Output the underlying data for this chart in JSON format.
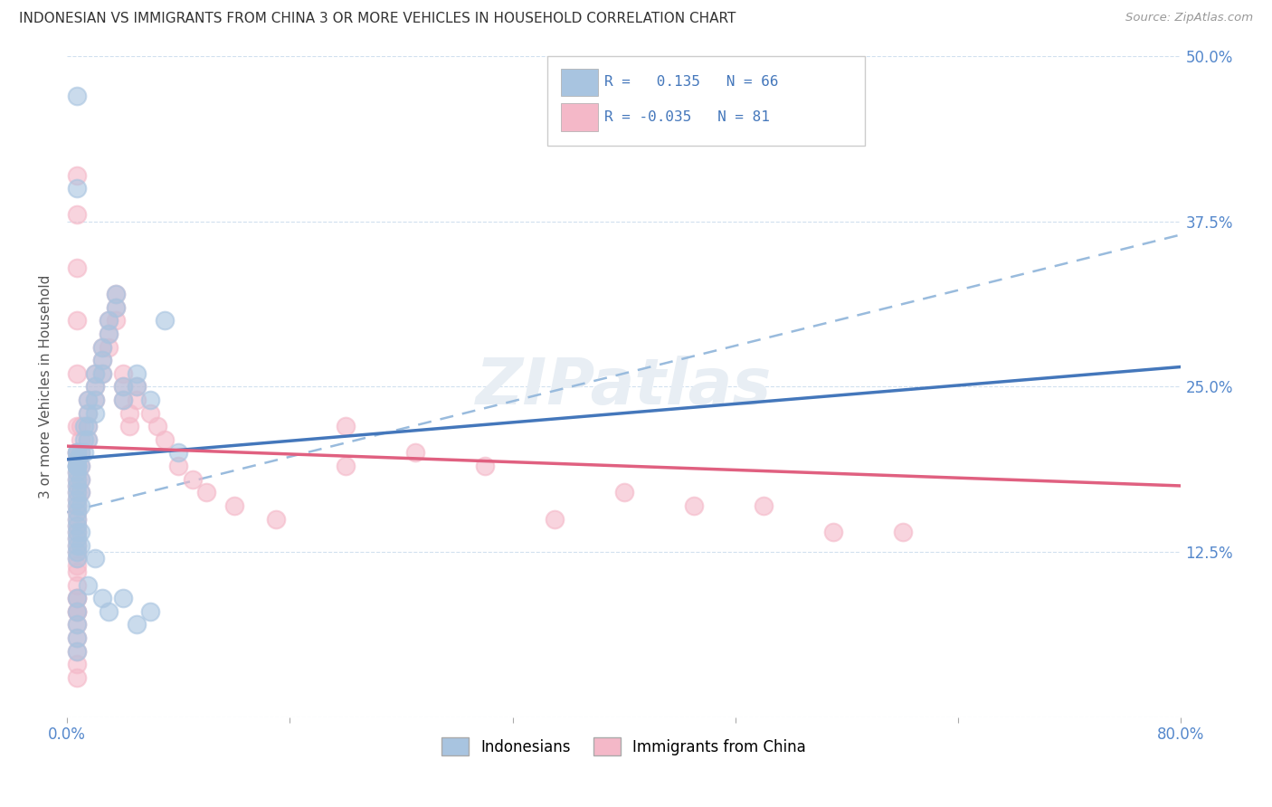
{
  "title": "INDONESIAN VS IMMIGRANTS FROM CHINA 3 OR MORE VEHICLES IN HOUSEHOLD CORRELATION CHART",
  "source": "Source: ZipAtlas.com",
  "ylabel": "3 or more Vehicles in Household",
  "xlim": [
    0.0,
    0.8
  ],
  "ylim": [
    0.0,
    0.5
  ],
  "color_blue": "#a8c4e0",
  "color_pink": "#f4b8c8",
  "trendline_blue": "#4477bb",
  "trendline_pink": "#e06080",
  "trendline_dashed_color": "#99bbdd",
  "blue_trend_x": [
    0.0,
    0.8
  ],
  "blue_trend_y": [
    0.195,
    0.265
  ],
  "pink_trend_x": [
    0.0,
    0.8
  ],
  "pink_trend_y": [
    0.205,
    0.175
  ],
  "dash_trend_x": [
    0.0,
    0.8
  ],
  "dash_trend_y": [
    0.155,
    0.365
  ],
  "indonesian_x": [
    0.007,
    0.007,
    0.007,
    0.007,
    0.007,
    0.007,
    0.007,
    0.007,
    0.007,
    0.007,
    0.007,
    0.007,
    0.007,
    0.007,
    0.007,
    0.007,
    0.007,
    0.007,
    0.007,
    0.007,
    0.01,
    0.01,
    0.01,
    0.01,
    0.01,
    0.012,
    0.012,
    0.012,
    0.015,
    0.015,
    0.015,
    0.015,
    0.02,
    0.02,
    0.02,
    0.02,
    0.025,
    0.025,
    0.025,
    0.03,
    0.03,
    0.035,
    0.035,
    0.04,
    0.04,
    0.05,
    0.05,
    0.06,
    0.07,
    0.08,
    0.007,
    0.007,
    0.007,
    0.007,
    0.007,
    0.01,
    0.01,
    0.015,
    0.02,
    0.025,
    0.03,
    0.04,
    0.05,
    0.06,
    0.007,
    0.007
  ],
  "indonesian_y": [
    0.2,
    0.2,
    0.19,
    0.19,
    0.19,
    0.195,
    0.185,
    0.18,
    0.175,
    0.17,
    0.165,
    0.16,
    0.155,
    0.15,
    0.145,
    0.14,
    0.135,
    0.13,
    0.125,
    0.12,
    0.2,
    0.19,
    0.18,
    0.17,
    0.16,
    0.22,
    0.21,
    0.2,
    0.24,
    0.23,
    0.22,
    0.21,
    0.26,
    0.25,
    0.24,
    0.23,
    0.28,
    0.27,
    0.26,
    0.3,
    0.29,
    0.32,
    0.31,
    0.25,
    0.24,
    0.26,
    0.25,
    0.24,
    0.3,
    0.2,
    0.09,
    0.08,
    0.07,
    0.06,
    0.05,
    0.14,
    0.13,
    0.1,
    0.12,
    0.09,
    0.08,
    0.09,
    0.07,
    0.08,
    0.4,
    0.47
  ],
  "china_x": [
    0.007,
    0.007,
    0.007,
    0.007,
    0.007,
    0.007,
    0.007,
    0.007,
    0.007,
    0.007,
    0.007,
    0.007,
    0.007,
    0.007,
    0.007,
    0.007,
    0.007,
    0.007,
    0.007,
    0.007,
    0.01,
    0.01,
    0.01,
    0.01,
    0.01,
    0.01,
    0.015,
    0.015,
    0.015,
    0.015,
    0.02,
    0.02,
    0.02,
    0.025,
    0.025,
    0.025,
    0.03,
    0.03,
    0.03,
    0.035,
    0.035,
    0.035,
    0.04,
    0.04,
    0.04,
    0.045,
    0.045,
    0.05,
    0.05,
    0.06,
    0.065,
    0.07,
    0.08,
    0.09,
    0.1,
    0.12,
    0.15,
    0.2,
    0.2,
    0.25,
    0.3,
    0.35,
    0.4,
    0.45,
    0.5,
    0.55,
    0.6,
    0.007,
    0.007,
    0.007,
    0.007,
    0.007,
    0.007,
    0.007,
    0.007,
    0.007,
    0.007,
    0.007,
    0.007,
    0.007,
    0.007,
    0.007,
    0.007
  ],
  "china_y": [
    0.2,
    0.2,
    0.195,
    0.19,
    0.185,
    0.18,
    0.175,
    0.17,
    0.165,
    0.16,
    0.155,
    0.15,
    0.145,
    0.14,
    0.135,
    0.13,
    0.125,
    0.12,
    0.115,
    0.11,
    0.22,
    0.21,
    0.2,
    0.19,
    0.18,
    0.17,
    0.24,
    0.23,
    0.22,
    0.21,
    0.26,
    0.25,
    0.24,
    0.28,
    0.27,
    0.26,
    0.3,
    0.29,
    0.28,
    0.32,
    0.31,
    0.3,
    0.26,
    0.25,
    0.24,
    0.23,
    0.22,
    0.25,
    0.24,
    0.23,
    0.22,
    0.21,
    0.19,
    0.18,
    0.17,
    0.16,
    0.15,
    0.22,
    0.19,
    0.2,
    0.19,
    0.15,
    0.17,
    0.16,
    0.16,
    0.14,
    0.14,
    0.09,
    0.08,
    0.07,
    0.06,
    0.05,
    0.04,
    0.03,
    0.1,
    0.09,
    0.08,
    0.41,
    0.38,
    0.34,
    0.3,
    0.26,
    0.22
  ]
}
